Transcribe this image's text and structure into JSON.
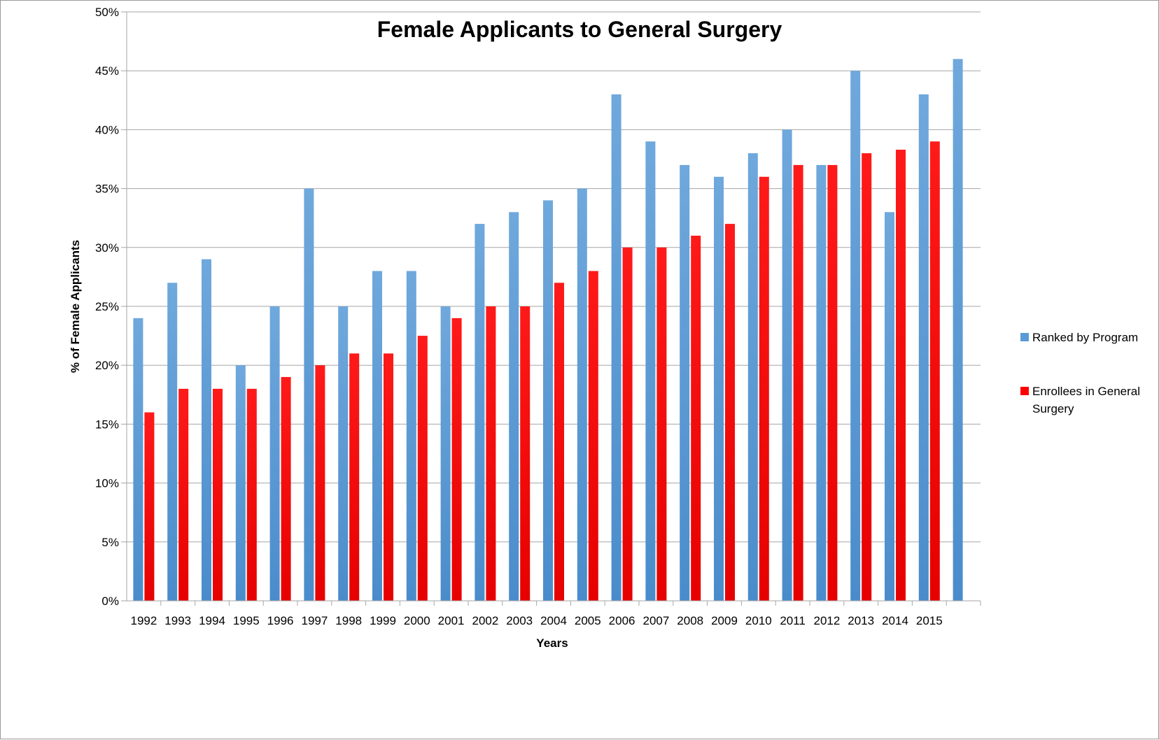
{
  "chart_data": {
    "type": "bar",
    "title": "Female Applicants to General Surgery",
    "xlabel": "Years",
    "ylabel": "% of Female Applicants",
    "ylim": [
      0,
      50
    ],
    "y_tick_step": 5,
    "y_tick_suffix": "%",
    "grid": true,
    "legend_position": "right",
    "categories": [
      "1992",
      "1993",
      "1994",
      "1995",
      "1996",
      "1997",
      "1998",
      "1999",
      "2000",
      "2001",
      "2002",
      "2003",
      "2004",
      "2005",
      "2006",
      "2007",
      "2008",
      "2009",
      "2010",
      "2011",
      "2012",
      "2013",
      "2014",
      "2015",
      ""
    ],
    "series": [
      {
        "name": "Ranked by Program",
        "color": "#5B9BD5",
        "values": [
          24,
          27,
          29,
          20,
          25,
          35,
          25,
          28,
          28,
          25,
          32,
          33,
          34,
          35,
          43,
          39,
          37,
          36,
          38,
          40,
          37,
          45,
          33,
          43,
          46
        ]
      },
      {
        "name": "Enrollees in General Surgery",
        "color": "#FF0000",
        "values": [
          16,
          18,
          18,
          18,
          19,
          20,
          21,
          21,
          22.5,
          24,
          25,
          25,
          27,
          28,
          30,
          30,
          31,
          32,
          36,
          37,
          37,
          38,
          38.3,
          39,
          null
        ]
      }
    ]
  }
}
